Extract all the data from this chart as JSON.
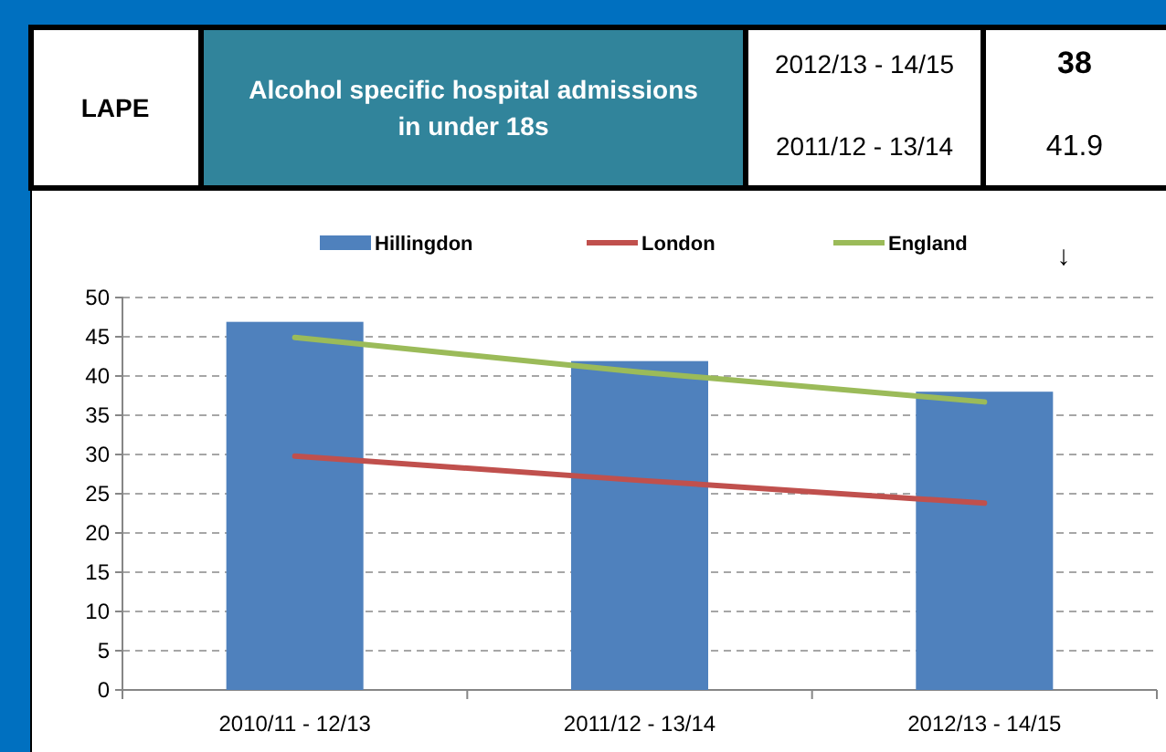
{
  "chart_data": [
    {
      "type": "other",
      "title": "Alcohol specific hospital admissions in under 18s",
      "annotations": [
        "LAPE",
        "2012/13 - 14/15",
        "38",
        "2011/12 - 13/14",
        "41.9"
      ]
    },
    {
      "type": "bar",
      "categories": [
        "2010/11 - 12/13",
        "2011/12 - 13/14",
        "2012/13 - 14/15"
      ],
      "series": [
        {
          "name": "Hillingdon",
          "type": "bar",
          "color": "#4f81bd",
          "values": [
            46.9,
            41.9,
            38
          ]
        },
        {
          "name": "London",
          "type": "line",
          "color": "#c0504d",
          "values": [
            29.8,
            26.7,
            23.8
          ]
        },
        {
          "name": "England",
          "type": "line",
          "color": "#9bbb59",
          "values": [
            44.9,
            40.5,
            36.7
          ]
        }
      ],
      "ylim": [
        0,
        50
      ],
      "yticks": [
        0,
        5,
        10,
        15,
        20,
        25,
        30,
        35,
        40,
        45,
        50
      ],
      "grid": "y",
      "legend": "top",
      "annotations": [
        "↓"
      ]
    }
  ]
}
